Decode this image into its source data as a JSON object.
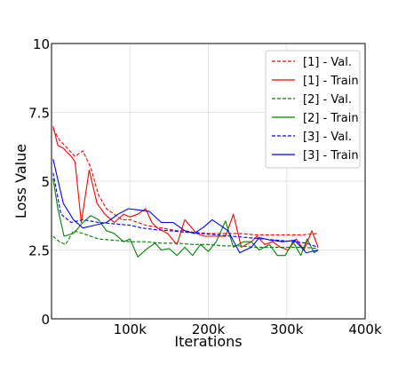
{
  "chart_data": {
    "type": "line",
    "xlabel": "Iterations",
    "ylabel": "Loss Value",
    "xlim": [
      0,
      400000
    ],
    "ylim": [
      0,
      10
    ],
    "grid": true,
    "legend_position": "top-right",
    "x_ticks": [
      {
        "value": 100000,
        "label": "100k"
      },
      {
        "value": 200000,
        "label": "200k"
      },
      {
        "value": 300000,
        "label": "300k"
      },
      {
        "value": 400000,
        "label": "400k"
      }
    ],
    "y_ticks": [
      {
        "value": 0,
        "label": "0"
      },
      {
        "value": 2.5,
        "label": "2.5"
      },
      {
        "value": 5,
        "label": "5"
      },
      {
        "value": 7.5,
        "label": "7.5"
      },
      {
        "value": 10,
        "label": "10"
      }
    ],
    "series": [
      {
        "name": "[1] - Val.",
        "color": "#ff0000",
        "dash": "dashed",
        "points": [
          [
            2000,
            6.9
          ],
          [
            10000,
            6.5
          ],
          [
            20000,
            6.2
          ],
          [
            30000,
            5.9
          ],
          [
            40000,
            6.1
          ],
          [
            50000,
            5.5
          ],
          [
            60000,
            4.5
          ],
          [
            70000,
            4.0
          ],
          [
            80000,
            3.8
          ],
          [
            90000,
            3.6
          ],
          [
            100000,
            3.6
          ],
          [
            110000,
            3.5
          ],
          [
            120000,
            3.4
          ],
          [
            130000,
            3.35
          ],
          [
            140000,
            3.3
          ],
          [
            150000,
            3.25
          ],
          [
            160000,
            3.2
          ],
          [
            170000,
            3.2
          ],
          [
            180000,
            3.15
          ],
          [
            200000,
            3.1
          ],
          [
            220000,
            3.1
          ],
          [
            240000,
            3.1
          ],
          [
            260000,
            3.05
          ],
          [
            280000,
            3.05
          ],
          [
            300000,
            3.05
          ],
          [
            320000,
            3.05
          ],
          [
            340000,
            3.1
          ]
        ]
      },
      {
        "name": "[1] - Train",
        "color": "#ff0000",
        "dash": "solid",
        "points": [
          [
            2000,
            7.0
          ],
          [
            8000,
            6.3
          ],
          [
            15000,
            6.2
          ],
          [
            25000,
            5.9
          ],
          [
            30000,
            5.7
          ],
          [
            38000,
            3.5
          ],
          [
            48000,
            5.4
          ],
          [
            58000,
            4.2
          ],
          [
            68000,
            3.8
          ],
          [
            80000,
            3.5
          ],
          [
            92000,
            3.8
          ],
          [
            100000,
            3.7
          ],
          [
            110000,
            3.8
          ],
          [
            120000,
            4.0
          ],
          [
            128000,
            3.5
          ],
          [
            135000,
            3.3
          ],
          [
            148000,
            3.1
          ],
          [
            160000,
            2.7
          ],
          [
            170000,
            3.6
          ],
          [
            185000,
            3.1
          ],
          [
            195000,
            3.0
          ],
          [
            210000,
            3.0
          ],
          [
            222000,
            3.0
          ],
          [
            232000,
            3.8
          ],
          [
            242000,
            2.6
          ],
          [
            255000,
            2.8
          ],
          [
            262000,
            3.0
          ],
          [
            272000,
            2.7
          ],
          [
            282000,
            2.8
          ],
          [
            292000,
            2.6
          ],
          [
            302000,
            2.5
          ],
          [
            312000,
            2.9
          ],
          [
            322000,
            2.5
          ],
          [
            332000,
            3.2
          ],
          [
            340000,
            2.6
          ]
        ]
      },
      {
        "name": "[2] - Val.",
        "color": "#008000",
        "dash": "dashed",
        "points": [
          [
            2000,
            3.0
          ],
          [
            10000,
            2.8
          ],
          [
            18000,
            2.7
          ],
          [
            28000,
            3.2
          ],
          [
            40000,
            3.1
          ],
          [
            60000,
            2.9
          ],
          [
            80000,
            2.85
          ],
          [
            100000,
            2.8
          ],
          [
            120000,
            2.8
          ],
          [
            140000,
            2.75
          ],
          [
            160000,
            2.75
          ],
          [
            180000,
            2.7
          ],
          [
            200000,
            2.7
          ],
          [
            220000,
            2.65
          ],
          [
            240000,
            2.65
          ],
          [
            260000,
            2.6
          ],
          [
            280000,
            2.6
          ],
          [
            300000,
            2.6
          ],
          [
            320000,
            2.6
          ],
          [
            340000,
            2.55
          ]
        ]
      },
      {
        "name": "[2] - Train",
        "color": "#008000",
        "dash": "solid",
        "points": [
          [
            2000,
            5.1
          ],
          [
            8000,
            4.0
          ],
          [
            16000,
            3.0
          ],
          [
            28000,
            3.1
          ],
          [
            40000,
            3.5
          ],
          [
            50000,
            3.75
          ],
          [
            60000,
            3.6
          ],
          [
            70000,
            3.2
          ],
          [
            80000,
            3.1
          ],
          [
            92000,
            2.8
          ],
          [
            100000,
            2.9
          ],
          [
            110000,
            2.25
          ],
          [
            122000,
            2.55
          ],
          [
            132000,
            2.75
          ],
          [
            140000,
            2.5
          ],
          [
            150000,
            2.55
          ],
          [
            160000,
            2.3
          ],
          [
            170000,
            2.6
          ],
          [
            180000,
            2.3
          ],
          [
            190000,
            2.7
          ],
          [
            200000,
            2.45
          ],
          [
            210000,
            2.8
          ],
          [
            222000,
            3.55
          ],
          [
            232000,
            2.6
          ],
          [
            245000,
            2.8
          ],
          [
            255000,
            2.8
          ],
          [
            265000,
            2.5
          ],
          [
            278000,
            2.7
          ],
          [
            288000,
            2.3
          ],
          [
            298000,
            2.3
          ],
          [
            308000,
            2.8
          ],
          [
            318000,
            2.3
          ],
          [
            326000,
            2.9
          ],
          [
            335000,
            2.4
          ],
          [
            340000,
            2.5
          ]
        ]
      },
      {
        "name": "[3] - Val.",
        "color": "#0000ff",
        "dash": "dashed",
        "points": [
          [
            2000,
            5.3
          ],
          [
            12000,
            3.8
          ],
          [
            25000,
            3.5
          ],
          [
            40000,
            3.6
          ],
          [
            60000,
            3.5
          ],
          [
            80000,
            3.45
          ],
          [
            100000,
            3.4
          ],
          [
            115000,
            3.3
          ],
          [
            130000,
            3.25
          ],
          [
            150000,
            3.2
          ],
          [
            170000,
            3.15
          ],
          [
            190000,
            3.1
          ],
          [
            210000,
            3.05
          ],
          [
            230000,
            3.0
          ],
          [
            250000,
            2.95
          ],
          [
            270000,
            2.9
          ],
          [
            290000,
            2.85
          ],
          [
            310000,
            2.8
          ],
          [
            325000,
            2.75
          ],
          [
            340000,
            2.6
          ]
        ]
      },
      {
        "name": "[3] - Train",
        "color": "#0000ff",
        "dash": "solid",
        "points": [
          [
            2000,
            5.8
          ],
          [
            15000,
            4.2
          ],
          [
            28000,
            3.6
          ],
          [
            40000,
            3.3
          ],
          [
            55000,
            3.4
          ],
          [
            70000,
            3.5
          ],
          [
            85000,
            3.8
          ],
          [
            98000,
            4.0
          ],
          [
            112000,
            3.95
          ],
          [
            125000,
            3.9
          ],
          [
            140000,
            3.5
          ],
          [
            155000,
            3.5
          ],
          [
            170000,
            3.2
          ],
          [
            182000,
            3.1
          ],
          [
            195000,
            3.35
          ],
          [
            205000,
            3.6
          ],
          [
            215000,
            3.4
          ],
          [
            225000,
            3.2
          ],
          [
            240000,
            2.4
          ],
          [
            255000,
            2.6
          ],
          [
            265000,
            2.95
          ],
          [
            280000,
            2.85
          ],
          [
            295000,
            2.8
          ],
          [
            310000,
            2.85
          ],
          [
            325000,
            2.4
          ],
          [
            340000,
            2.5
          ]
        ]
      }
    ]
  }
}
